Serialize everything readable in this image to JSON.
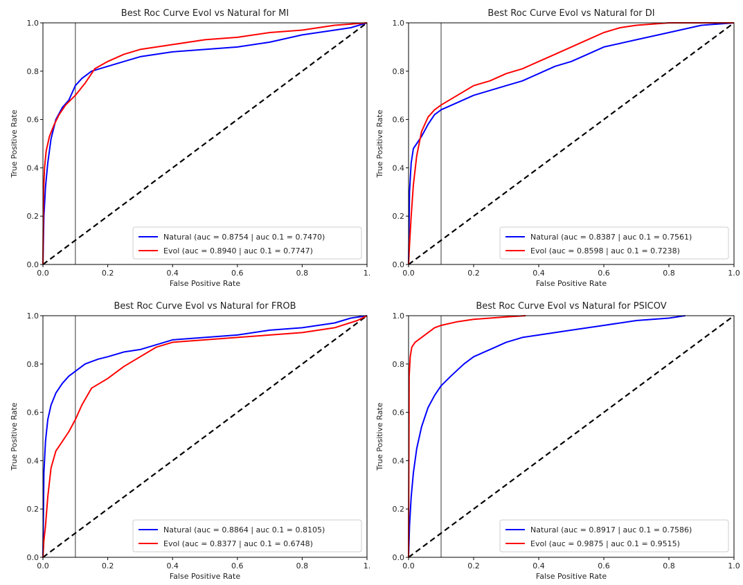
{
  "chart_data": [
    {
      "type": "line",
      "title": "Best Roc Curve Evol vs Natural for MI",
      "xlabel": "False Positive Rate",
      "ylabel": "True Positive Rate",
      "xlim": [
        0,
        1
      ],
      "ylim": [
        0,
        1
      ],
      "xticks": [
        "0.0",
        "0.2",
        "0.4",
        "0.6",
        "0.8",
        "1."
      ],
      "yticks": [
        "0.0",
        "0.2",
        "0.4",
        "0.6",
        "0.8",
        "1.0"
      ],
      "legend_position": "lower-right",
      "vline_x": 0.1,
      "diagonal": true,
      "grid": false,
      "series": [
        {
          "name": "Natural (auc = 0.8754 | auc 0.1 = 0.7470)",
          "color": "#0000ff",
          "x": [
            0,
            0.003,
            0.008,
            0.015,
            0.025,
            0.04,
            0.06,
            0.08,
            0.1,
            0.12,
            0.15,
            0.2,
            0.25,
            0.3,
            0.4,
            0.5,
            0.6,
            0.7,
            0.8,
            0.9,
            0.95,
            1.0
          ],
          "y": [
            0,
            0.2,
            0.32,
            0.42,
            0.52,
            0.6,
            0.65,
            0.68,
            0.74,
            0.77,
            0.8,
            0.82,
            0.84,
            0.86,
            0.88,
            0.89,
            0.9,
            0.92,
            0.95,
            0.97,
            0.98,
            1.0
          ]
        },
        {
          "name": "Evol (auc = 0.8940 | auc 0.1 = 0.7747)",
          "color": "#ff0000",
          "x": [
            0,
            0.002,
            0.005,
            0.01,
            0.02,
            0.035,
            0.05,
            0.07,
            0.1,
            0.13,
            0.16,
            0.2,
            0.25,
            0.3,
            0.4,
            0.5,
            0.6,
            0.7,
            0.8,
            0.9,
            1.0
          ],
          "y": [
            0,
            0.3,
            0.4,
            0.47,
            0.53,
            0.58,
            0.62,
            0.66,
            0.7,
            0.75,
            0.81,
            0.84,
            0.87,
            0.89,
            0.91,
            0.93,
            0.94,
            0.96,
            0.97,
            0.99,
            1.0
          ]
        }
      ]
    },
    {
      "type": "line",
      "title": "Best Roc Curve Evol vs Natural for DI",
      "xlabel": "False Positive Rate",
      "ylabel": "True Positive Rate",
      "xlim": [
        0,
        1
      ],
      "ylim": [
        0,
        1
      ],
      "xticks": [
        "0.0",
        "0.2",
        "0.4",
        "0.6",
        "0.8",
        "1.0"
      ],
      "yticks": [
        "0.0",
        "0.2",
        "0.4",
        "0.6",
        "0.8",
        "1.0"
      ],
      "legend_position": "lower-right",
      "vline_x": 0.1,
      "diagonal": true,
      "grid": false,
      "series": [
        {
          "name": "Natural (auc = 0.8387 | auc 0.1 = 0.7561)",
          "color": "#0000ff",
          "x": [
            0,
            0.003,
            0.008,
            0.015,
            0.025,
            0.04,
            0.06,
            0.08,
            0.1,
            0.15,
            0.2,
            0.25,
            0.3,
            0.35,
            0.4,
            0.45,
            0.5,
            0.55,
            0.6,
            0.7,
            0.8,
            0.9,
            1.0
          ],
          "y": [
            0,
            0.3,
            0.42,
            0.48,
            0.5,
            0.53,
            0.58,
            0.62,
            0.64,
            0.67,
            0.7,
            0.72,
            0.74,
            0.76,
            0.79,
            0.82,
            0.84,
            0.87,
            0.9,
            0.93,
            0.96,
            0.99,
            1.0
          ]
        },
        {
          "name": "Evol (auc = 0.8598 | auc 0.1 = 0.7238)",
          "color": "#ff0000",
          "x": [
            0,
            0.003,
            0.008,
            0.015,
            0.025,
            0.04,
            0.06,
            0.08,
            0.1,
            0.15,
            0.2,
            0.25,
            0.3,
            0.35,
            0.4,
            0.45,
            0.5,
            0.55,
            0.6,
            0.65,
            0.7,
            0.8,
            1.0
          ],
          "y": [
            0,
            0.08,
            0.2,
            0.33,
            0.45,
            0.55,
            0.61,
            0.64,
            0.66,
            0.7,
            0.74,
            0.76,
            0.79,
            0.81,
            0.84,
            0.87,
            0.9,
            0.93,
            0.96,
            0.98,
            0.99,
            1.0,
            1.0
          ]
        }
      ]
    },
    {
      "type": "line",
      "title": "Best Roc Curve Evol vs Natural for FROB",
      "xlabel": "False Positive Rate",
      "ylabel": "True Positive Rate",
      "xlim": [
        0,
        1
      ],
      "ylim": [
        0,
        1
      ],
      "xticks": [
        "0.0",
        "0.2",
        "0.4",
        "0.6",
        "0.8",
        "1."
      ],
      "yticks": [
        "0.0",
        "0.2",
        "0.4",
        "0.6",
        "0.8",
        "1.0"
      ],
      "legend_position": "lower-right",
      "vline_x": 0.1,
      "diagonal": true,
      "grid": false,
      "series": [
        {
          "name": "Natural (auc = 0.8864 | auc 0.1 = 0.8105)",
          "color": "#0000ff",
          "x": [
            0,
            0.003,
            0.008,
            0.015,
            0.025,
            0.04,
            0.06,
            0.08,
            0.1,
            0.13,
            0.17,
            0.2,
            0.25,
            0.3,
            0.35,
            0.4,
            0.5,
            0.6,
            0.7,
            0.8,
            0.9,
            0.95,
            1.0
          ],
          "y": [
            0,
            0.35,
            0.48,
            0.57,
            0.63,
            0.68,
            0.72,
            0.75,
            0.77,
            0.8,
            0.82,
            0.83,
            0.85,
            0.86,
            0.88,
            0.9,
            0.91,
            0.92,
            0.94,
            0.95,
            0.97,
            0.99,
            1.0
          ]
        },
        {
          "name": "Evol (auc = 0.8377 | auc 0.1 = 0.6748)",
          "color": "#ff0000",
          "x": [
            0,
            0.003,
            0.008,
            0.015,
            0.025,
            0.04,
            0.06,
            0.08,
            0.1,
            0.12,
            0.15,
            0.2,
            0.25,
            0.3,
            0.35,
            0.4,
            0.5,
            0.6,
            0.7,
            0.8,
            0.9,
            0.97,
            1.0
          ],
          "y": [
            0,
            0.07,
            0.13,
            0.25,
            0.37,
            0.44,
            0.48,
            0.52,
            0.57,
            0.63,
            0.7,
            0.74,
            0.79,
            0.83,
            0.87,
            0.89,
            0.9,
            0.91,
            0.92,
            0.93,
            0.95,
            0.98,
            1.0
          ]
        }
      ]
    },
    {
      "type": "line",
      "title": "Best Roc Curve Evol vs Natural for PSICOV",
      "xlabel": "False Positive Rate",
      "ylabel": "True Positive Rate",
      "xlim": [
        0,
        1
      ],
      "ylim": [
        0,
        1
      ],
      "xticks": [
        "0.0",
        "0.2",
        "0.4",
        "0.6",
        "0.8",
        "1.0"
      ],
      "yticks": [
        "0.0",
        "0.2",
        "0.4",
        "0.6",
        "0.8",
        "1.0"
      ],
      "legend_position": "lower-right",
      "vline_x": 0.1,
      "diagonal": true,
      "grid": false,
      "series": [
        {
          "name": "Natural (auc = 0.8917 | auc 0.1 = 0.7586)",
          "color": "#0000ff",
          "x": [
            0,
            0.003,
            0.008,
            0.015,
            0.025,
            0.04,
            0.06,
            0.08,
            0.1,
            0.13,
            0.17,
            0.2,
            0.25,
            0.3,
            0.35,
            0.4,
            0.5,
            0.6,
            0.7,
            0.8,
            0.85
          ],
          "y": [
            0,
            0.13,
            0.25,
            0.35,
            0.45,
            0.54,
            0.62,
            0.67,
            0.71,
            0.75,
            0.8,
            0.83,
            0.86,
            0.89,
            0.91,
            0.92,
            0.94,
            0.96,
            0.98,
            0.99,
            1.0
          ]
        },
        {
          "name": "Evol (auc = 0.9875 | auc 0.1 = 0.9515)",
          "color": "#ff0000",
          "x": [
            0,
            0.002,
            0.005,
            0.01,
            0.02,
            0.04,
            0.06,
            0.08,
            0.1,
            0.15,
            0.2,
            0.25,
            0.3,
            0.36
          ],
          "y": [
            0,
            0.75,
            0.83,
            0.87,
            0.89,
            0.91,
            0.93,
            0.95,
            0.96,
            0.975,
            0.985,
            0.99,
            0.995,
            1.0
          ]
        }
      ]
    }
  ]
}
